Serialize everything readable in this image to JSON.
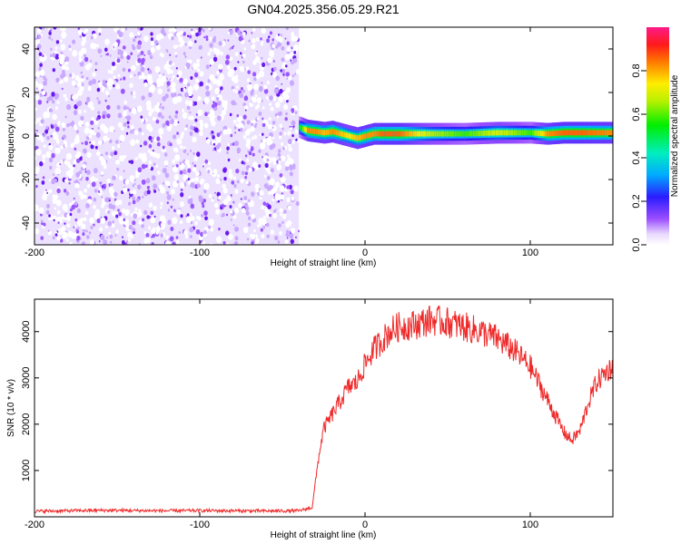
{
  "chart_data": [
    {
      "type": "heatmap",
      "title": "GN04.2025.356.05.29.R21",
      "xlabel": "Height of straight line (km)",
      "ylabel": "Frequency (Hz)",
      "xlim": [
        -200,
        150
      ],
      "ylim": [
        -50,
        50
      ],
      "x_ticks": [
        -200,
        -100,
        0,
        100
      ],
      "y_ticks": [
        -40,
        -20,
        0,
        20,
        40
      ],
      "x_tick_labels": [
        "-200",
        "-100",
        "0",
        "100"
      ],
      "y_tick_labels": [
        "-40",
        "-20",
        "0",
        "20",
        "40"
      ],
      "noise_region_x": [
        -200,
        -40
      ],
      "signal_ridge": {
        "x": [
          -40,
          -35,
          -30,
          -25,
          -20,
          -15,
          -10,
          -5,
          0,
          5,
          10,
          20,
          40,
          60,
          80,
          100,
          110,
          120,
          130,
          150
        ],
        "frequency": [
          4,
          2.5,
          2,
          1.5,
          2,
          1,
          0,
          -1,
          0,
          1,
          1,
          1,
          1,
          1,
          1.5,
          1.5,
          1,
          1.5,
          1.5,
          1.5
        ],
        "amplitude": [
          0.5,
          0.9,
          0.9,
          0.85,
          0.9,
          0.85,
          0.8,
          0.85,
          0.9,
          0.9,
          0.95,
          0.95,
          0.7,
          0.6,
          0.75,
          0.6,
          0.9,
          0.95,
          0.95,
          0.9
        ]
      },
      "colorbar": {
        "label": "Normalized spectral amplitude",
        "range": [
          0,
          1
        ],
        "ticks": [
          0.0,
          0.2,
          0.4,
          0.6,
          0.8
        ],
        "tick_labels": [
          "0.0",
          "0.2",
          "0.4",
          "0.6",
          "0.8"
        ]
      }
    },
    {
      "type": "line",
      "xlabel": "Height of straight line (km)",
      "ylabel": "SNR (10 * v/v)",
      "xlim": [
        -200,
        150
      ],
      "ylim": [
        0,
        4700
      ],
      "x_ticks": [
        -200,
        -100,
        0,
        100
      ],
      "y_ticks": [
        1000,
        2000,
        3000,
        4000
      ],
      "x_tick_labels": [
        "-200",
        "-100",
        "0",
        "100"
      ],
      "y_tick_labels": [
        "1000",
        "2000",
        "3000",
        "4000"
      ],
      "series": [
        {
          "name": "SNR",
          "color": "#ef2a2a",
          "x": [
            -200,
            -180,
            -160,
            -140,
            -120,
            -100,
            -80,
            -60,
            -40,
            -32,
            -28,
            -25,
            -20,
            -15,
            -10,
            -5,
            0,
            5,
            10,
            15,
            20,
            30,
            40,
            50,
            60,
            70,
            80,
            90,
            100,
            105,
            110,
            115,
            120,
            125,
            130,
            135,
            140,
            145,
            150
          ],
          "y": [
            120,
            130,
            140,
            135,
            130,
            135,
            130,
            125,
            130,
            200,
            1300,
            1900,
            2200,
            2500,
            2800,
            2900,
            3300,
            3600,
            3800,
            4000,
            4100,
            4150,
            4250,
            4200,
            4100,
            4000,
            3850,
            3600,
            3250,
            2900,
            2550,
            2200,
            1850,
            1650,
            1850,
            2450,
            2900,
            3100,
            3250
          ]
        }
      ]
    }
  ]
}
